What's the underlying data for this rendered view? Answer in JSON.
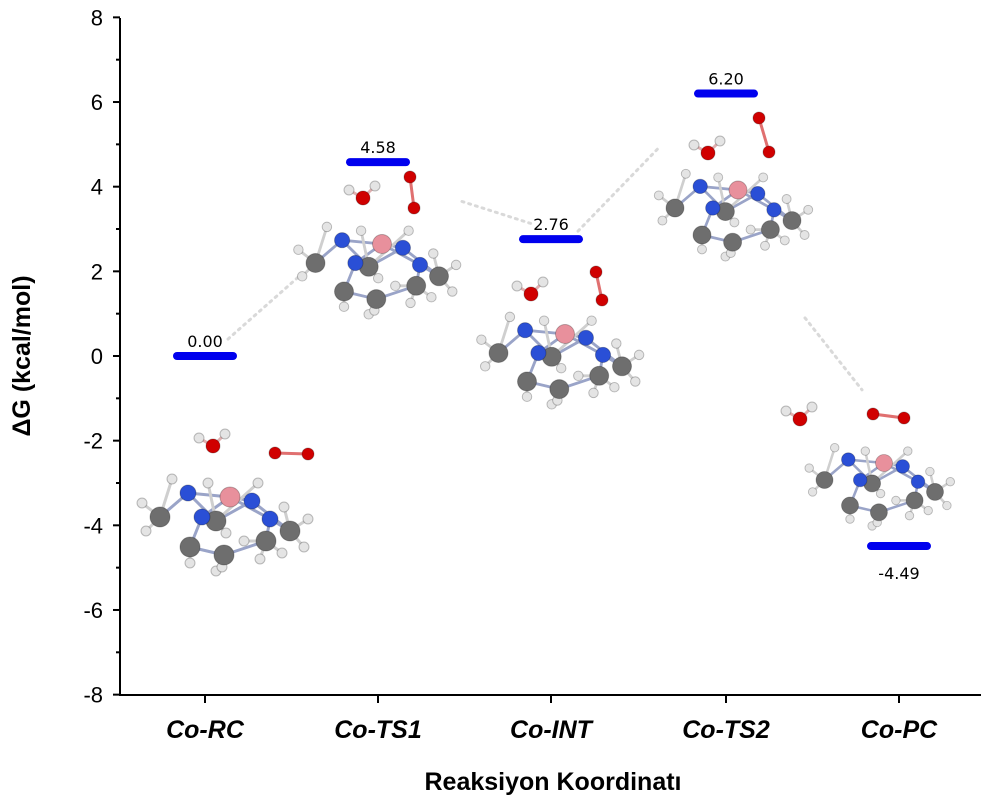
{
  "chart_data": {
    "type": "energy-profile",
    "xlabel": "Reaksiyon Koordinatı",
    "ylabel": "ΔG (kcal/mol)",
    "ylim": [
      -8,
      8
    ],
    "y_ticks": [
      8,
      6,
      4,
      2,
      0,
      -2,
      -4,
      -6,
      -8
    ],
    "categories": [
      "Co-RC",
      "Co-TS1",
      "Co-INT",
      "Co-TS2",
      "Co-PC"
    ],
    "values": [
      0.0,
      4.58,
      2.76,
      6.2,
      -4.49
    ],
    "value_labels": [
      "0.00",
      "4.58",
      "2.76",
      "6.20",
      "-4.49"
    ],
    "level_color": "#0000ee",
    "connector_color": "#d9d9d9",
    "molecule_colors": {
      "cobalt": "#e8909c",
      "nitrogen": "#2a4fd6",
      "carbon": "#6e6e6e",
      "hydrogen": "#e4e4e4",
      "oxygen": "#d00000"
    },
    "grid": false
  }
}
